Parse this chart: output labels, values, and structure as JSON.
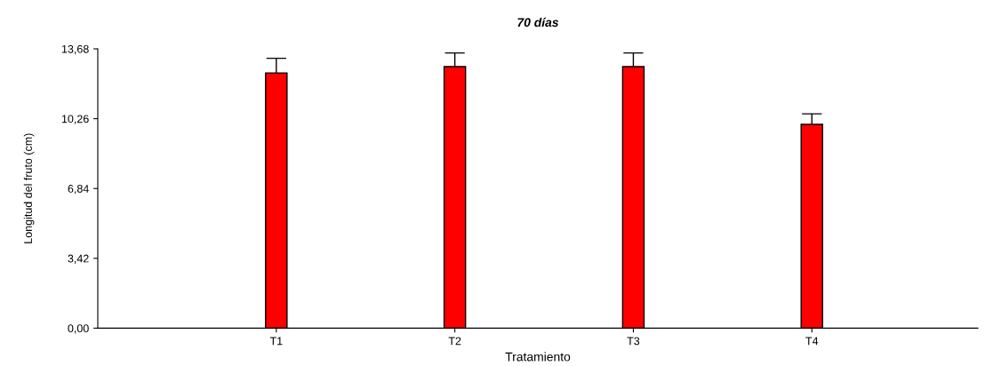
{
  "chart_data": {
    "type": "bar",
    "title": "70 días",
    "xlabel": "Tratamiento",
    "ylabel": "Longitud del fruto (cm)",
    "categories": [
      "T1",
      "T2",
      "T3",
      "T4"
    ],
    "values": [
      12.5,
      12.81,
      12.81,
      9.98
    ],
    "errors": [
      0.72,
      0.67,
      0.67,
      0.52
    ],
    "color": "#ff0000",
    "ylim": [
      0,
      13.68
    ],
    "yticks": [
      {
        "value": 0,
        "label": "0,00"
      },
      {
        "value": 3.42,
        "label": "3,42"
      },
      {
        "value": 6.84,
        "label": "6,84"
      },
      {
        "value": 10.26,
        "label": "10,26"
      },
      {
        "value": 13.68,
        "label": "13,68"
      }
    ],
    "grid": false,
    "legend": false
  }
}
